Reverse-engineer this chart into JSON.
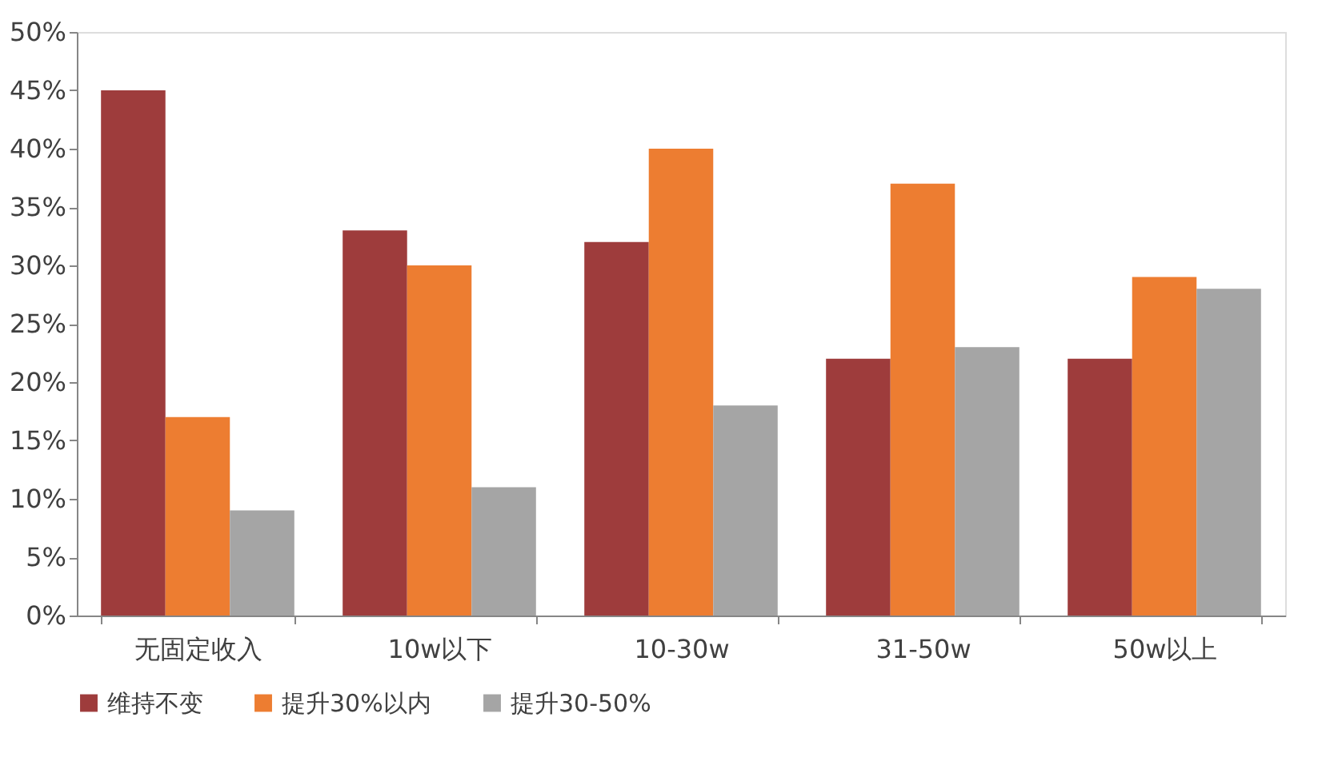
{
  "chart_data": {
    "type": "bar",
    "categories": [
      "无固定收入",
      "10w以下",
      "10-30w",
      "31-50w",
      "50w以上"
    ],
    "series": [
      {
        "name": "维持不变",
        "color": "#9e3c3c",
        "values": [
          45,
          33,
          32,
          22,
          22
        ]
      },
      {
        "name": "提升30%以内",
        "color": "#ed7d31",
        "values": [
          17,
          30,
          40,
          37,
          29
        ]
      },
      {
        "name": "提升30-50%",
        "color": "#a5a5a5",
        "values": [
          9,
          11,
          18,
          23,
          28
        ]
      }
    ],
    "ylim": [
      0,
      50
    ],
    "yticks": [
      {
        "value": 0,
        "label": "0%"
      },
      {
        "value": 5,
        "label": "5%"
      },
      {
        "value": 10,
        "label": "10%"
      },
      {
        "value": 15,
        "label": "15%"
      },
      {
        "value": 20,
        "label": "20%"
      },
      {
        "value": 25,
        "label": "25%"
      },
      {
        "value": 30,
        "label": "30%"
      },
      {
        "value": 35,
        "label": "35%"
      },
      {
        "value": 40,
        "label": "40%"
      },
      {
        "value": 45,
        "label": "45%"
      },
      {
        "value": 50,
        "label": "50%"
      }
    ],
    "grid": false,
    "legend": "bottom"
  }
}
